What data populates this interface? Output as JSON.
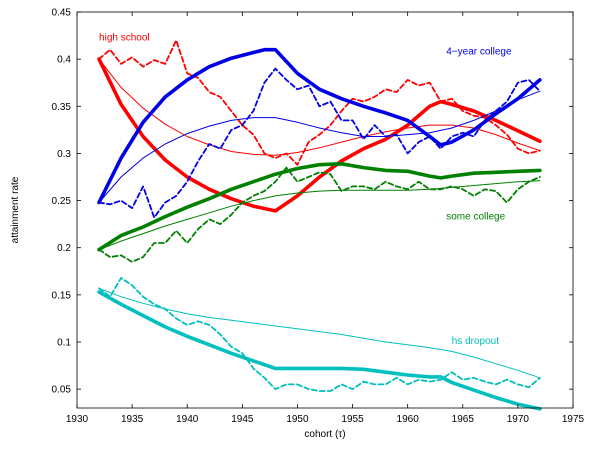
{
  "chart_data": {
    "type": "line",
    "xlabel": "cohort (τ)",
    "ylabel": "attainment rate",
    "xlim": [
      1930,
      1975
    ],
    "ylim": [
      0.03,
      0.45
    ],
    "xticks": [
      1930,
      1935,
      1940,
      1945,
      1950,
      1955,
      1960,
      1965,
      1970,
      1975
    ],
    "yticks": [
      0.05,
      0.1,
      0.15,
      0.2,
      0.25,
      0.3,
      0.35,
      0.4,
      0.45
    ],
    "grid": false,
    "line_styles": {
      "thick": "thick solid line",
      "thin": "thin solid line",
      "dashed": "dashed line"
    },
    "series": [
      {
        "name": "high school",
        "color": "#ff0000",
        "label_at": [
          1932,
          0.42
        ],
        "thick": {
          "x": [
            1932,
            1934,
            1936,
            1938,
            1940,
            1942,
            1944,
            1946,
            1948,
            1950,
            1952,
            1954,
            1956,
            1958,
            1960,
            1962,
            1963,
            1964,
            1966,
            1968,
            1970,
            1972
          ],
          "y": [
            0.4,
            0.352,
            0.318,
            0.293,
            0.275,
            0.262,
            0.252,
            0.244,
            0.239,
            0.255,
            0.275,
            0.292,
            0.305,
            0.315,
            0.33,
            0.35,
            0.355,
            0.352,
            0.345,
            0.335,
            0.324,
            0.313
          ]
        },
        "thin": {
          "x": [
            1932,
            1934,
            1936,
            1938,
            1940,
            1942,
            1944,
            1946,
            1948,
            1950,
            1952,
            1954,
            1956,
            1958,
            1960,
            1962,
            1964,
            1966,
            1968,
            1970,
            1972
          ],
          "y": [
            0.4,
            0.37,
            0.348,
            0.331,
            0.318,
            0.309,
            0.302,
            0.299,
            0.298,
            0.301,
            0.306,
            0.312,
            0.318,
            0.323,
            0.327,
            0.33,
            0.33,
            0.327,
            0.32,
            0.311,
            0.303
          ]
        },
        "dashed": {
          "x": [
            1932,
            1933,
            1934,
            1935,
            1936,
            1937,
            1938,
            1939,
            1940,
            1941,
            1942,
            1943,
            1944,
            1945,
            1946,
            1947,
            1948,
            1949,
            1950,
            1951,
            1952,
            1953,
            1954,
            1955,
            1956,
            1957,
            1958,
            1959,
            1960,
            1961,
            1962,
            1963,
            1964,
            1965,
            1966,
            1967,
            1968,
            1969,
            1970,
            1971,
            1972
          ],
          "y": [
            0.4,
            0.41,
            0.395,
            0.402,
            0.392,
            0.399,
            0.395,
            0.42,
            0.385,
            0.38,
            0.365,
            0.36,
            0.345,
            0.33,
            0.32,
            0.3,
            0.295,
            0.3,
            0.288,
            0.312,
            0.32,
            0.33,
            0.345,
            0.358,
            0.355,
            0.36,
            0.368,
            0.365,
            0.378,
            0.372,
            0.375,
            0.355,
            0.358,
            0.345,
            0.34,
            0.338,
            0.33,
            0.32,
            0.305,
            0.3,
            0.303
          ]
        }
      },
      {
        "name": "4−year college",
        "color": "#0000e6",
        "label_at": [
          1963.5,
          0.405
        ],
        "thick": {
          "x": [
            1932,
            1934,
            1936,
            1938,
            1940,
            1942,
            1944,
            1946,
            1947,
            1948,
            1950,
            1952,
            1954,
            1956,
            1958,
            1960,
            1962,
            1963,
            1964,
            1966,
            1968,
            1970,
            1972
          ],
          "y": [
            0.248,
            0.295,
            0.333,
            0.36,
            0.378,
            0.392,
            0.401,
            0.407,
            0.41,
            0.41,
            0.385,
            0.368,
            0.358,
            0.35,
            0.343,
            0.335,
            0.318,
            0.309,
            0.312,
            0.325,
            0.342,
            0.358,
            0.378
          ]
        },
        "thin": {
          "x": [
            1932,
            1934,
            1936,
            1938,
            1940,
            1942,
            1944,
            1946,
            1948,
            1950,
            1952,
            1954,
            1956,
            1958,
            1960,
            1962,
            1964,
            1966,
            1968,
            1970,
            1972
          ],
          "y": [
            0.248,
            0.275,
            0.295,
            0.31,
            0.321,
            0.329,
            0.335,
            0.338,
            0.338,
            0.333,
            0.327,
            0.322,
            0.318,
            0.318,
            0.32,
            0.322,
            0.327,
            0.335,
            0.345,
            0.357,
            0.366
          ]
        },
        "dashed": {
          "x": [
            1932,
            1933,
            1934,
            1935,
            1936,
            1937,
            1938,
            1939,
            1940,
            1941,
            1942,
            1943,
            1944,
            1945,
            1946,
            1947,
            1948,
            1949,
            1950,
            1951,
            1952,
            1953,
            1954,
            1955,
            1956,
            1957,
            1958,
            1959,
            1960,
            1961,
            1962,
            1963,
            1964,
            1965,
            1966,
            1967,
            1968,
            1969,
            1970,
            1971,
            1972
          ],
          "y": [
            0.248,
            0.246,
            0.25,
            0.242,
            0.265,
            0.232,
            0.248,
            0.255,
            0.27,
            0.292,
            0.31,
            0.305,
            0.325,
            0.33,
            0.345,
            0.375,
            0.39,
            0.378,
            0.368,
            0.372,
            0.35,
            0.355,
            0.335,
            0.335,
            0.315,
            0.33,
            0.318,
            0.32,
            0.3,
            0.312,
            0.318,
            0.305,
            0.318,
            0.322,
            0.318,
            0.335,
            0.345,
            0.355,
            0.375,
            0.378,
            0.366
          ]
        }
      },
      {
        "name": "some college",
        "color": "#008000",
        "label_at": [
          1963.5,
          0.23
        ],
        "thick": {
          "x": [
            1932,
            1934,
            1936,
            1938,
            1940,
            1942,
            1944,
            1946,
            1948,
            1950,
            1952,
            1954,
            1956,
            1958,
            1960,
            1962,
            1963,
            1964,
            1966,
            1968,
            1970,
            1972
          ],
          "y": [
            0.198,
            0.213,
            0.222,
            0.233,
            0.243,
            0.252,
            0.262,
            0.27,
            0.278,
            0.284,
            0.288,
            0.289,
            0.285,
            0.282,
            0.281,
            0.276,
            0.274,
            0.276,
            0.279,
            0.28,
            0.281,
            0.282
          ]
        },
        "thin": {
          "x": [
            1932,
            1934,
            1936,
            1938,
            1940,
            1942,
            1944,
            1946,
            1948,
            1950,
            1952,
            1954,
            1956,
            1958,
            1960,
            1962,
            1964,
            1966,
            1968,
            1970,
            1972
          ],
          "y": [
            0.198,
            0.207,
            0.215,
            0.223,
            0.23,
            0.237,
            0.244,
            0.25,
            0.255,
            0.258,
            0.26,
            0.261,
            0.261,
            0.261,
            0.261,
            0.262,
            0.264,
            0.266,
            0.268,
            0.27,
            0.271
          ]
        },
        "dashed": {
          "x": [
            1932,
            1933,
            1934,
            1935,
            1936,
            1937,
            1938,
            1939,
            1940,
            1941,
            1942,
            1943,
            1944,
            1945,
            1946,
            1947,
            1948,
            1949,
            1950,
            1951,
            1952,
            1953,
            1954,
            1955,
            1956,
            1957,
            1958,
            1959,
            1960,
            1961,
            1962,
            1963,
            1964,
            1965,
            1966,
            1967,
            1968,
            1969,
            1970,
            1971,
            1972
          ],
          "y": [
            0.198,
            0.19,
            0.192,
            0.185,
            0.19,
            0.205,
            0.205,
            0.218,
            0.205,
            0.22,
            0.23,
            0.225,
            0.235,
            0.248,
            0.255,
            0.26,
            0.27,
            0.285,
            0.27,
            0.275,
            0.28,
            0.278,
            0.26,
            0.265,
            0.265,
            0.262,
            0.27,
            0.265,
            0.262,
            0.27,
            0.262,
            0.262,
            0.265,
            0.262,
            0.255,
            0.262,
            0.26,
            0.248,
            0.262,
            0.27,
            0.275
          ]
        }
      },
      {
        "name": "hs dropout",
        "color": "#00bfbf",
        "label_at": [
          1964,
          0.098
        ],
        "thick": {
          "x": [
            1932,
            1934,
            1936,
            1938,
            1940,
            1942,
            1944,
            1946,
            1948,
            1950,
            1952,
            1954,
            1956,
            1958,
            1960,
            1962,
            1963,
            1964,
            1966,
            1968,
            1970,
            1972
          ],
          "y": [
            0.153,
            0.14,
            0.128,
            0.116,
            0.106,
            0.097,
            0.088,
            0.08,
            0.072,
            0.072,
            0.072,
            0.072,
            0.071,
            0.068,
            0.065,
            0.063,
            0.063,
            0.057,
            0.049,
            0.041,
            0.034,
            0.029
          ]
        },
        "thin": {
          "x": [
            1932,
            1934,
            1936,
            1938,
            1940,
            1942,
            1944,
            1946,
            1948,
            1950,
            1952,
            1954,
            1956,
            1958,
            1960,
            1962,
            1964,
            1966,
            1968,
            1970,
            1972
          ],
          "y": [
            0.157,
            0.148,
            0.141,
            0.135,
            0.13,
            0.126,
            0.123,
            0.12,
            0.117,
            0.114,
            0.111,
            0.108,
            0.104,
            0.1,
            0.097,
            0.094,
            0.09,
            0.084,
            0.077,
            0.07,
            0.062
          ]
        },
        "dashed": {
          "x": [
            1932,
            1933,
            1934,
            1935,
            1936,
            1937,
            1938,
            1939,
            1940,
            1941,
            1942,
            1943,
            1944,
            1945,
            1946,
            1947,
            1948,
            1949,
            1950,
            1951,
            1952,
            1953,
            1954,
            1955,
            1956,
            1957,
            1958,
            1959,
            1960,
            1961,
            1962,
            1963,
            1964,
            1965,
            1966,
            1967,
            1968,
            1969,
            1970,
            1971,
            1972
          ],
          "y": [
            0.157,
            0.148,
            0.168,
            0.16,
            0.148,
            0.14,
            0.135,
            0.125,
            0.118,
            0.122,
            0.118,
            0.108,
            0.095,
            0.088,
            0.072,
            0.062,
            0.05,
            0.055,
            0.055,
            0.05,
            0.048,
            0.048,
            0.055,
            0.05,
            0.058,
            0.055,
            0.055,
            0.062,
            0.055,
            0.06,
            0.058,
            0.06,
            0.068,
            0.06,
            0.062,
            0.058,
            0.055,
            0.06,
            0.055,
            0.052,
            0.062
          ]
        }
      }
    ]
  }
}
